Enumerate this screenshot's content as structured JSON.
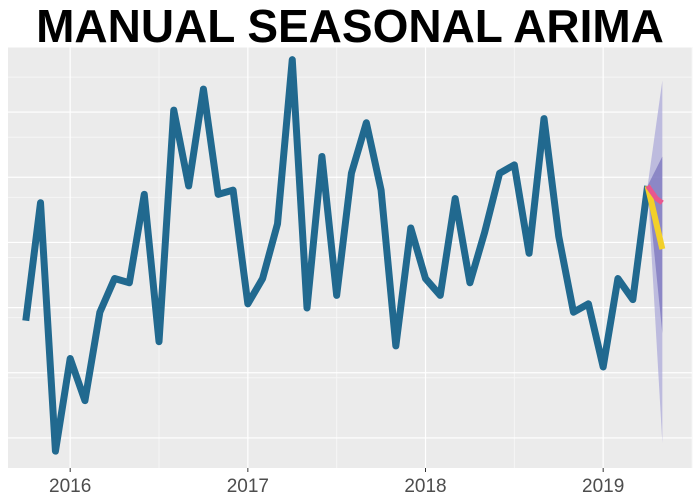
{
  "chart_data": {
    "type": "line",
    "title": "MANUAL SEASONAL ARIMA",
    "xlabel": "",
    "ylabel": "",
    "x_ticks": [
      "2016",
      "2017",
      "2018",
      "2019"
    ],
    "x_tick_values": [
      2016,
      2017,
      2018,
      2019
    ],
    "xlim": [
      2015.65,
      2019.5
    ],
    "ylim": [
      0,
      1
    ],
    "grid": true,
    "series": [
      {
        "values": [
          [
            2015.75,
            0.35
          ],
          [
            2015.833,
            0.63
          ],
          [
            2015.917,
            0.04
          ],
          [
            2016.0,
            0.26
          ],
          [
            2016.083,
            0.16
          ],
          [
            2016.167,
            0.37
          ],
          [
            2016.25,
            0.45
          ],
          [
            2016.333,
            0.44
          ],
          [
            2016.417,
            0.65
          ],
          [
            2016.5,
            0.3
          ],
          [
            2016.583,
            0.85
          ],
          [
            2016.667,
            0.67
          ],
          [
            2016.75,
            0.9
          ],
          [
            2016.833,
            0.65
          ],
          [
            2016.917,
            0.66
          ],
          [
            2017.0,
            0.39
          ],
          [
            2017.083,
            0.45
          ],
          [
            2017.167,
            0.58
          ],
          [
            2017.25,
            0.97
          ],
          [
            2017.333,
            0.38
          ],
          [
            2017.417,
            0.74
          ],
          [
            2017.5,
            0.41
          ],
          [
            2017.583,
            0.7
          ],
          [
            2017.667,
            0.82
          ],
          [
            2017.75,
            0.66
          ],
          [
            2017.833,
            0.29
          ],
          [
            2017.917,
            0.57
          ],
          [
            2018.0,
            0.45
          ],
          [
            2018.083,
            0.41
          ],
          [
            2018.167,
            0.64
          ],
          [
            2018.25,
            0.44
          ],
          [
            2018.333,
            0.56
          ],
          [
            2018.417,
            0.7
          ],
          [
            2018.5,
            0.72
          ],
          [
            2018.583,
            0.51
          ],
          [
            2018.667,
            0.83
          ],
          [
            2018.75,
            0.55
          ],
          [
            2018.833,
            0.37
          ],
          [
            2018.917,
            0.39
          ],
          [
            2019.0,
            0.24
          ],
          [
            2019.083,
            0.45
          ],
          [
            2019.167,
            0.4
          ],
          [
            2019.25,
            0.67
          ]
        ],
        "color": "#21698f"
      },
      {
        "values": [
          [
            2019.25,
            0.67
          ],
          [
            2019.333,
            0.52
          ]
        ],
        "color": "#f2d02a"
      },
      {
        "values": [
          [
            2019.25,
            0.67
          ],
          [
            2019.3,
            0.64
          ],
          [
            2019.333,
            0.63
          ]
        ],
        "color": "#e8578f"
      }
    ],
    "forecast_interval": {
      "x": [
        2019.25,
        2019.333
      ],
      "lower80": [
        0.67,
        0.32
      ],
      "upper80": [
        0.67,
        0.74
      ],
      "lower95": [
        0.67,
        0.06
      ],
      "upper95": [
        0.67,
        0.92
      ],
      "color80": "#6a64b5",
      "color95": "#aaa6d8"
    },
    "colors": {
      "panel": "#ebebeb",
      "grid_major": "#ffffff",
      "grid_minor": "#f6f6f6"
    }
  }
}
